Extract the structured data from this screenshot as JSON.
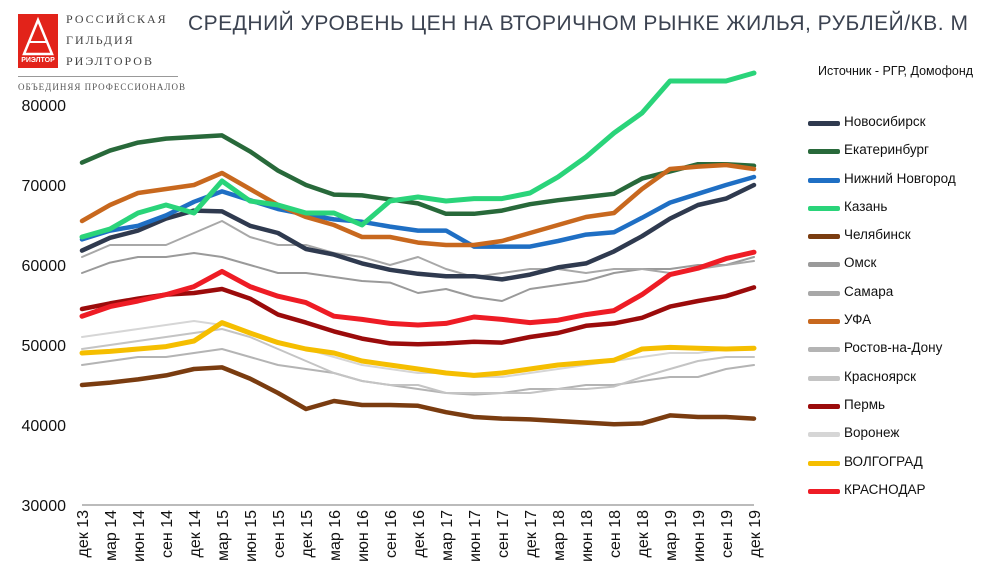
{
  "brand": {
    "line1": "РОССИЙСКАЯ",
    "line2": "ГИЛЬДИЯ",
    "line3": "РИЭЛТОРОВ",
    "tagline": "ОБЪЕДИНЯЯ ПРОФЕССИОНАЛОВ",
    "mark_label": "РИЭЛТОР",
    "mark_color": "#e2231a"
  },
  "chart_data": {
    "type": "line",
    "title": "СРЕДНИЙ УРОВЕНЬ ЦЕН НА ВТОРИЧНОМ РЫНКЕ ЖИЛЬЯ, РУБЛЕЙ/КВ. М",
    "source": "Источник - РГР, Домофонд",
    "xlabel": "",
    "ylabel": "",
    "ylim": [
      30000,
      80000
    ],
    "yticks": [
      "80000",
      "70000",
      "60000",
      "50000",
      "40000",
      "30000"
    ],
    "grid": false,
    "legend_position": "right",
    "x": [
      "дек 13",
      "мар 14",
      "июн 14",
      "сен 14",
      "дек 14",
      "мар 15",
      "июн 15",
      "сен 15",
      "дек 15",
      "мар 16",
      "июн 16",
      "сен 16",
      "дек 16",
      "мар 17",
      "июн 17",
      "сен 17",
      "дек 17",
      "мар 18",
      "июн 18",
      "сен 18",
      "дек 18",
      "мар 19",
      "июн 19",
      "сен 19",
      "дек 19"
    ],
    "series": [
      {
        "name": "Новосибирск",
        "color": "#2f3a4f",
        "width": 4.5,
        "values": [
          61800,
          63400,
          64300,
          65800,
          66800,
          66700,
          64900,
          64000,
          62000,
          61300,
          60200,
          59400,
          58900,
          58600,
          58600,
          58200,
          58800,
          59700,
          60200,
          61700,
          63600,
          65800,
          67500,
          68300,
          70000
        ]
      },
      {
        "name": "Екатеринбург",
        "color": "#28693a",
        "width": 4.5,
        "values": [
          72800,
          74300,
          75300,
          75800,
          76000,
          76200,
          74200,
          71800,
          70000,
          68800,
          68700,
          68200,
          67700,
          66400,
          66400,
          66800,
          67600,
          68100,
          68500,
          68900,
          70800,
          71700,
          72600,
          72600,
          72400
        ]
      },
      {
        "name": "Нижний Новгород",
        "color": "#1f6fc4",
        "width": 4.5,
        "values": [
          63200,
          64300,
          64900,
          66200,
          67900,
          69200,
          68100,
          67000,
          66300,
          65700,
          65400,
          64800,
          64300,
          64300,
          62300,
          62300,
          62300,
          63000,
          63800,
          64100,
          65900,
          67800,
          68900,
          70000,
          71000
        ]
      },
      {
        "name": "Казань",
        "color": "#2ad47a",
        "width": 5,
        "values": [
          63500,
          64500,
          66500,
          67500,
          66500,
          70500,
          68000,
          67500,
          66500,
          66500,
          65000,
          68000,
          68500,
          68000,
          68300,
          68300,
          69000,
          71000,
          73500,
          76500,
          79000,
          83000,
          83000,
          83000,
          84000
        ]
      },
      {
        "name": "Челябинск",
        "color": "#7a3c10",
        "width": 4.5,
        "values": [
          45000,
          45300,
          45700,
          46200,
          47000,
          47200,
          45800,
          44000,
          42000,
          43000,
          42500,
          42500,
          42400,
          41600,
          41000,
          40800,
          40700,
          40500,
          40300,
          40100,
          40200,
          41200,
          41000,
          41000,
          40800
        ]
      },
      {
        "name": "Омск",
        "color": "#9a9a9a",
        "width": 2,
        "values": [
          59000,
          60300,
          61000,
          61000,
          61500,
          61000,
          60000,
          59000,
          59000,
          58500,
          58000,
          57800,
          56500,
          57000,
          56000,
          55500,
          57000,
          57500,
          58000,
          59000,
          59500,
          59500,
          60000,
          60000,
          61000
        ]
      },
      {
        "name": "Самара",
        "color": "#a8a8a8",
        "width": 2,
        "values": [
          61000,
          62500,
          62500,
          62500,
          64000,
          65500,
          63500,
          62500,
          62500,
          61500,
          61000,
          60000,
          61000,
          59500,
          58500,
          59000,
          59500,
          59500,
          59000,
          59500,
          59500,
          59000,
          59500,
          60000,
          60500
        ]
      },
      {
        "name": "УФА",
        "color": "#c8681e",
        "width": 4.5,
        "values": [
          65500,
          67500,
          69000,
          69500,
          70000,
          71500,
          69500,
          67500,
          66000,
          65000,
          63500,
          63500,
          62800,
          62500,
          62500,
          63000,
          64000,
          65000,
          66000,
          66500,
          69500,
          72000,
          72300,
          72500,
          72000
        ]
      },
      {
        "name": "Ростов-на-Дону",
        "color": "#b4b4b4",
        "width": 2,
        "values": [
          47500,
          48000,
          48500,
          48500,
          49000,
          49500,
          48500,
          47500,
          47000,
          46500,
          45500,
          45000,
          44500,
          44000,
          43800,
          44000,
          44500,
          44500,
          45000,
          45000,
          45500,
          46000,
          46000,
          47000,
          47500
        ]
      },
      {
        "name": "Красноярск",
        "color": "#c4c4c4",
        "width": 2,
        "values": [
          49500,
          50000,
          50500,
          51000,
          51500,
          52000,
          51000,
          49500,
          48000,
          46500,
          45500,
          45000,
          45000,
          44000,
          44000,
          44000,
          44000,
          44500,
          44500,
          44800,
          46000,
          47000,
          48000,
          48500,
          48500
        ]
      },
      {
        "name": "Пермь",
        "color": "#9b0b0b",
        "width": 4.5,
        "values": [
          54500,
          55200,
          55800,
          56300,
          56500,
          57000,
          55800,
          53800,
          52800,
          51700,
          50800,
          50200,
          50100,
          50200,
          50400,
          50300,
          51000,
          51500,
          52400,
          52700,
          53400,
          54800,
          55500,
          56100,
          57200
        ]
      },
      {
        "name": "Воронеж",
        "color": "#d6d6d6",
        "width": 2,
        "values": [
          51000,
          51500,
          52000,
          52500,
          53000,
          52500,
          51500,
          50500,
          49500,
          48500,
          47500,
          47000,
          46500,
          46500,
          46000,
          46000,
          46500,
          47000,
          47500,
          48000,
          48500,
          49000,
          49000,
          49500,
          49500
        ]
      },
      {
        "name": "ВОЛГОГРАД",
        "color": "#f5be00",
        "width": 5,
        "values": [
          49000,
          49200,
          49500,
          49800,
          50500,
          52800,
          51500,
          50300,
          49500,
          49000,
          48000,
          47500,
          47000,
          46500,
          46200,
          46500,
          47000,
          47500,
          47800,
          48100,
          49500,
          49700,
          49600,
          49500,
          49600
        ]
      },
      {
        "name": "КРАСНОДАР",
        "color": "#ee1c25",
        "width": 5,
        "values": [
          53600,
          54800,
          55500,
          56300,
          57300,
          59200,
          57300,
          56100,
          55300,
          53600,
          53200,
          52700,
          52500,
          52700,
          53500,
          53200,
          52800,
          53100,
          53800,
          54300,
          56300,
          58800,
          59600,
          60800,
          61600
        ]
      }
    ]
  }
}
